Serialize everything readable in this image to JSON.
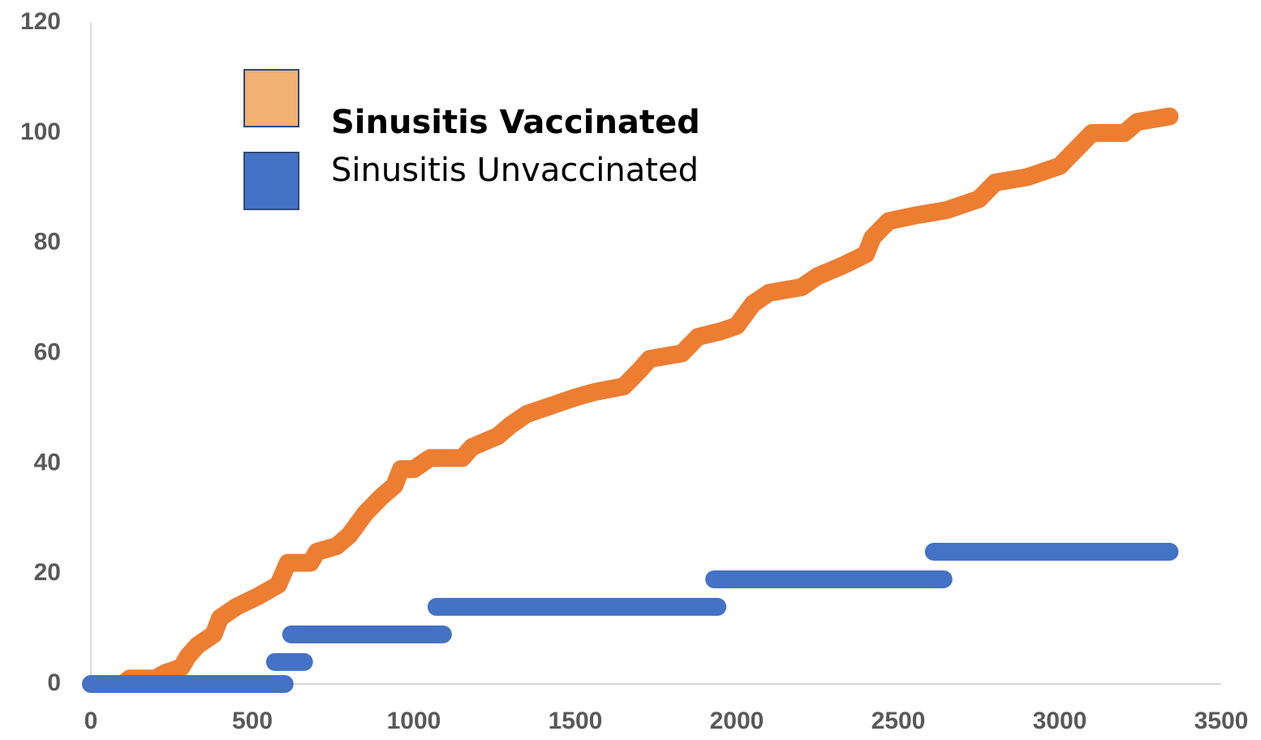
{
  "chart_data": {
    "type": "line",
    "xlim": [
      0,
      3500
    ],
    "xticks": [
      0,
      500,
      1000,
      1500,
      2000,
      2500,
      3000,
      3500
    ],
    "ylim": [
      0,
      120
    ],
    "yticks": [
      0,
      20,
      40,
      60,
      80,
      100,
      120
    ],
    "grid": false,
    "legend": "top-left",
    "series": [
      {
        "name": "Sinusitis Vaccinated",
        "color": "#ed7d31",
        "legend_color": "#f0b172",
        "x": [
          0,
          100,
          120,
          200,
          230,
          280,
          300,
          330,
          380,
          400,
          450,
          520,
          580,
          610,
          680,
          700,
          760,
          800,
          850,
          900,
          940,
          960,
          1000,
          1050,
          1150,
          1180,
          1260,
          1300,
          1350,
          1400,
          1450,
          1500,
          1560,
          1650,
          1700,
          1730,
          1830,
          1880,
          1950,
          2000,
          2050,
          2100,
          2200,
          2250,
          2330,
          2400,
          2420,
          2470,
          2550,
          2650,
          2750,
          2800,
          2900,
          3000,
          3050,
          3100,
          3200,
          3240,
          3340
        ],
        "values": [
          0,
          0,
          1,
          1,
          2,
          3,
          5,
          7,
          9,
          12,
          14,
          16,
          18,
          22,
          22,
          24,
          25,
          27,
          31,
          34,
          36,
          39,
          39,
          41,
          41,
          43,
          45,
          47,
          49,
          50,
          51,
          52,
          53,
          54,
          57,
          59,
          60,
          63,
          64,
          65,
          69,
          71,
          72,
          74,
          76,
          78,
          81,
          84,
          85,
          86,
          88,
          91,
          92,
          94,
          97,
          100,
          100,
          102,
          103
        ]
      },
      {
        "name": "Sinusitis Unvaccinated",
        "color": "#4472c4",
        "legend_color": "#4472c4",
        "x": [
          0,
          600,
          600,
          570,
          660,
          660,
          620,
          1090,
          1090,
          1070,
          1940,
          1940,
          1930,
          2640,
          2640,
          2610,
          3340
        ],
        "values": [
          0,
          0,
          null,
          4,
          4,
          null,
          9,
          9,
          null,
          14,
          14,
          null,
          19,
          19,
          null,
          24,
          24
        ]
      }
    ]
  }
}
